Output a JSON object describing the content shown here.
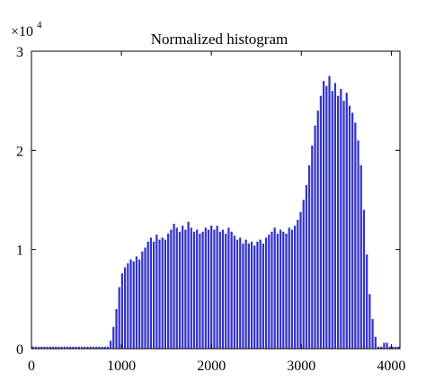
{
  "chart_data": {
    "type": "bar",
    "title": "Normalized histogram",
    "xlabel": "",
    "ylabel": "",
    "y_multiplier": {
      "base": "×10",
      "exponent": "4"
    },
    "xlim": [
      0,
      4096
    ],
    "ylim": [
      0,
      3
    ],
    "x_ticks": [
      {
        "value": 0,
        "label": "0"
      },
      {
        "value": 1000,
        "label": "1000"
      },
      {
        "value": 2000,
        "label": "2000"
      },
      {
        "value": 3000,
        "label": "3000"
      },
      {
        "value": 4000,
        "label": "4000"
      }
    ],
    "y_ticks": [
      {
        "value": 0,
        "label": "0"
      },
      {
        "value": 1,
        "label": "1"
      },
      {
        "value": 2,
        "label": "2"
      },
      {
        "value": 3,
        "label": "3"
      }
    ],
    "grid": false,
    "bar_color": "#3333cc",
    "bin_width": 32,
    "x": [
      16,
      48,
      80,
      112,
      144,
      176,
      208,
      240,
      272,
      304,
      336,
      368,
      400,
      432,
      464,
      496,
      528,
      560,
      592,
      624,
      656,
      688,
      720,
      752,
      784,
      816,
      848,
      880,
      912,
      944,
      976,
      1008,
      1040,
      1072,
      1104,
      1136,
      1168,
      1200,
      1232,
      1264,
      1296,
      1328,
      1360,
      1392,
      1424,
      1456,
      1488,
      1520,
      1552,
      1584,
      1616,
      1648,
      1680,
      1712,
      1744,
      1776,
      1808,
      1840,
      1872,
      1904,
      1936,
      1968,
      2000,
      2032,
      2064,
      2096,
      2128,
      2160,
      2192,
      2224,
      2256,
      2288,
      2320,
      2352,
      2384,
      2416,
      2448,
      2480,
      2512,
      2544,
      2576,
      2608,
      2640,
      2672,
      2704,
      2736,
      2768,
      2800,
      2832,
      2864,
      2896,
      2928,
      2960,
      2992,
      3024,
      3056,
      3088,
      3120,
      3152,
      3184,
      3216,
      3248,
      3280,
      3312,
      3344,
      3376,
      3408,
      3440,
      3472,
      3504,
      3536,
      3568,
      3600,
      3632,
      3664,
      3696,
      3728,
      3760,
      3792,
      3824,
      3856,
      3888,
      3920,
      3952,
      3984,
      4016,
      4048,
      4080
    ],
    "values": [
      0.02,
      0.02,
      0.02,
      0.02,
      0.02,
      0.02,
      0.02,
      0.02,
      0.02,
      0.02,
      0.02,
      0.02,
      0.02,
      0.02,
      0.02,
      0.02,
      0.02,
      0.02,
      0.02,
      0.02,
      0.02,
      0.02,
      0.02,
      0.02,
      0.02,
      0.02,
      0.02,
      0.08,
      0.22,
      0.4,
      0.62,
      0.76,
      0.82,
      0.86,
      0.9,
      0.88,
      0.93,
      0.9,
      0.98,
      1.02,
      1.08,
      1.12,
      1.08,
      1.15,
      1.1,
      1.12,
      1.1,
      1.16,
      1.2,
      1.26,
      1.22,
      1.18,
      1.24,
      1.2,
      1.28,
      1.22,
      1.18,
      1.2,
      1.16,
      1.18,
      1.22,
      1.2,
      1.24,
      1.2,
      1.24,
      1.18,
      1.2,
      1.16,
      1.22,
      1.18,
      1.14,
      1.1,
      1.12,
      1.06,
      1.1,
      1.06,
      1.08,
      1.04,
      1.08,
      1.1,
      1.06,
      1.12,
      1.15,
      1.18,
      1.22,
      1.16,
      1.2,
      1.18,
      1.16,
      1.22,
      1.2,
      1.24,
      1.3,
      1.38,
      1.5,
      1.65,
      1.85,
      2.05,
      2.25,
      2.4,
      2.55,
      2.7,
      2.65,
      2.75,
      2.6,
      2.68,
      2.55,
      2.62,
      2.5,
      2.58,
      2.45,
      2.38,
      2.28,
      2.1,
      1.85,
      1.4,
      0.95,
      0.55,
      0.3,
      0.12,
      0.02,
      0.02,
      0.06,
      0.06,
      0.02,
      0.02,
      0.02,
      0.02
    ]
  }
}
